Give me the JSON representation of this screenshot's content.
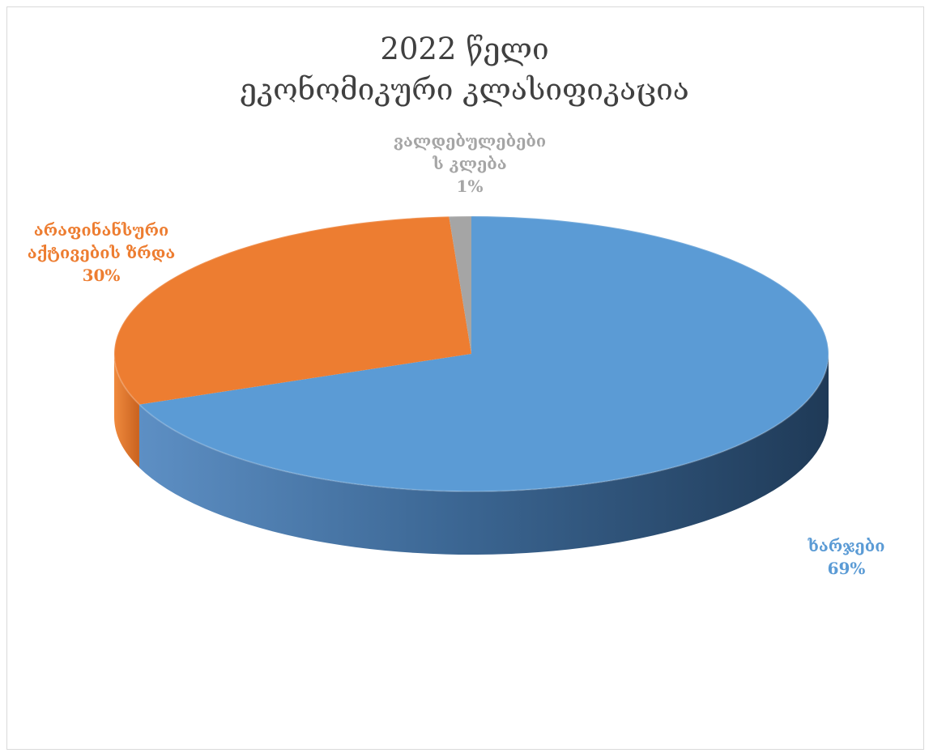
{
  "title_lines": [
    "2022 წელი",
    "ეკონომიკური კლასიფიკაცია"
  ],
  "chart_data": {
    "type": "pie",
    "title": "2022 წელი ეკონომიკური კლასიფიკაცია",
    "three_d": true,
    "legend": "none",
    "slices": [
      {
        "label": "ხარჯები",
        "value": 69,
        "percent_text": "69%",
        "color": "#5b9bd5"
      },
      {
        "label": "არაფინანსური აქტივების ზრდა",
        "value": 30,
        "percent_text": "30%",
        "color": "#ed7d31"
      },
      {
        "label": "ვალდებულებების კლება",
        "value": 1,
        "percent_text": "1%",
        "color": "#a5a5a5"
      }
    ]
  },
  "labels": {
    "expenses": {
      "lines": [
        "ხარჯები"
      ],
      "pct": "69%"
    },
    "nonfinancial": {
      "lines": [
        "არაფინანსური",
        "აქტივების ზრდა"
      ],
      "pct": "30%"
    },
    "liabilities": {
      "lines": [
        "ვალდებულებები",
        "ს კლება"
      ],
      "pct": "1%"
    }
  }
}
